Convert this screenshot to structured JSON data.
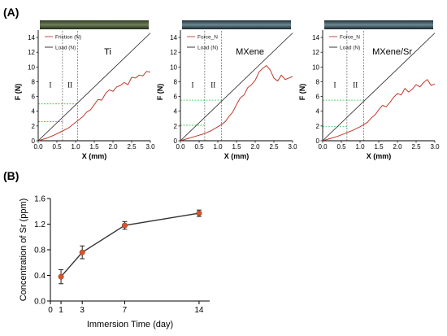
{
  "panel_a_label": "(A)",
  "panel_b_label": "(B)",
  "chart_data": [
    {
      "type": "line",
      "title": "Ti",
      "xlabel": "X (mm)",
      "ylabel": "F (N)",
      "xlim": [
        0,
        3.0
      ],
      "ylim": [
        0,
        15
      ],
      "xticks": [
        "0.0",
        "0.5",
        "1.0",
        "1.5",
        "2.0",
        "2.5",
        "3.0"
      ],
      "yticks": [
        "0",
        "2",
        "4",
        "6",
        "8",
        "10",
        "12",
        "14"
      ],
      "regions": [
        "I",
        "II"
      ],
      "vlines": [
        0.65,
        1.05
      ],
      "hlines": [
        2.6,
        5.0
      ],
      "series": [
        {
          "name": "Friction (N)",
          "color": "#c0392b",
          "x": [
            0,
            0.2,
            0.4,
            0.6,
            0.8,
            1.0,
            1.1,
            1.2,
            1.3,
            1.4,
            1.5,
            1.6,
            1.7,
            1.8,
            1.9,
            2.0,
            2.1,
            2.2,
            2.3,
            2.4,
            2.5,
            2.6,
            2.7,
            2.8,
            2.9,
            3.0
          ],
          "y": [
            0,
            0.3,
            0.7,
            1.2,
            1.7,
            2.5,
            2.9,
            3.3,
            3.9,
            4.2,
            4.9,
            5.6,
            5.5,
            6.4,
            6.9,
            6.7,
            7.3,
            7.5,
            7.9,
            7.6,
            8.6,
            8.5,
            8.9,
            8.8,
            9.4,
            9.3
          ]
        },
        {
          "name": "Load (N)",
          "color": "#222222",
          "x": [
            0,
            3.0
          ],
          "y": [
            0,
            14.6
          ]
        }
      ]
    },
    {
      "type": "line",
      "title": "MXene",
      "xlabel": "X (mm)",
      "ylabel": "F (N)",
      "xlim": [
        0,
        3.0
      ],
      "ylim": [
        0,
        15
      ],
      "xticks": [
        "0.0",
        "0.5",
        "1.0",
        "1.5",
        "2.0",
        "2.5",
        "3.0"
      ],
      "yticks": [
        "0",
        "2",
        "4",
        "6",
        "8",
        "10",
        "12",
        "14"
      ],
      "regions": [
        "I",
        "II"
      ],
      "vlines": [
        0.65,
        1.1
      ],
      "hlines": [
        2.1,
        5.5
      ],
      "series": [
        {
          "name": "Force_N",
          "color": "#c0392b",
          "x": [
            0,
            0.2,
            0.4,
            0.6,
            0.8,
            1.0,
            1.1,
            1.2,
            1.3,
            1.4,
            1.5,
            1.6,
            1.7,
            1.8,
            1.9,
            2.0,
            2.1,
            2.2,
            2.3,
            2.4,
            2.5,
            2.6,
            2.7,
            2.8,
            2.9,
            3.0
          ],
          "y": [
            0,
            0.3,
            0.6,
            0.9,
            1.3,
            1.9,
            2.2,
            2.6,
            3.3,
            3.9,
            4.9,
            5.8,
            6.2,
            7.2,
            7.6,
            8.2,
            9.3,
            9.8,
            10.2,
            9.6,
            8.5,
            8.1,
            8.9,
            8.3,
            8.5,
            8.7
          ]
        },
        {
          "name": "Load (N)",
          "color": "#222222",
          "x": [
            0,
            3.0
          ],
          "y": [
            0,
            14.6
          ]
        }
      ]
    },
    {
      "type": "line",
      "title": "MXene/Sr",
      "xlabel": "X (mm)",
      "ylabel": "F (N)",
      "xlim": [
        0,
        3.0
      ],
      "ylim": [
        0,
        15
      ],
      "xticks": [
        "0.0",
        "0.5",
        "1.0",
        "1.5",
        "2.0",
        "2.5",
        "3.0"
      ],
      "yticks": [
        "0",
        "2",
        "4",
        "6",
        "8",
        "10",
        "12",
        "14"
      ],
      "regions": [
        "I",
        "II"
      ],
      "vlines": [
        0.65,
        1.1
      ],
      "hlines": [
        1.9,
        5.5
      ],
      "series": [
        {
          "name": "Force_N",
          "color": "#c0392b",
          "x": [
            0,
            0.2,
            0.4,
            0.6,
            0.8,
            1.0,
            1.1,
            1.2,
            1.3,
            1.4,
            1.5,
            1.6,
            1.7,
            1.8,
            1.9,
            2.0,
            2.1,
            2.2,
            2.3,
            2.4,
            2.5,
            2.6,
            2.7,
            2.8,
            2.9,
            3.0
          ],
          "y": [
            0,
            0.3,
            0.6,
            1.0,
            1.4,
            1.9,
            2.2,
            2.5,
            3.1,
            3.5,
            4.2,
            4.8,
            4.6,
            5.2,
            5.9,
            6.4,
            6.2,
            7.1,
            6.6,
            7.0,
            7.6,
            7.3,
            7.9,
            8.3,
            7.5,
            7.7
          ]
        },
        {
          "name": "Load (N)",
          "color": "#222222",
          "x": [
            0,
            3.0
          ],
          "y": [
            0,
            14.6
          ]
        }
      ]
    },
    {
      "type": "line",
      "xlabel": "Immersion Time (day)",
      "ylabel": "Concentration of Sr (ppm)",
      "xlim": [
        0,
        15
      ],
      "ylim": [
        0,
        1.6
      ],
      "xticks": [
        "0",
        "1",
        "3",
        "7",
        "14"
      ],
      "yticks": [
        "0.0",
        "0.4",
        "0.8",
        "1.2",
        "1.6"
      ],
      "series": [
        {
          "marker_color": "#d9542b",
          "line_color": "#333333",
          "x": [
            1,
            3,
            7,
            14
          ],
          "y": [
            0.38,
            0.76,
            1.18,
            1.37
          ],
          "error": [
            0.11,
            0.1,
            0.06,
            0.05
          ]
        }
      ]
    }
  ]
}
